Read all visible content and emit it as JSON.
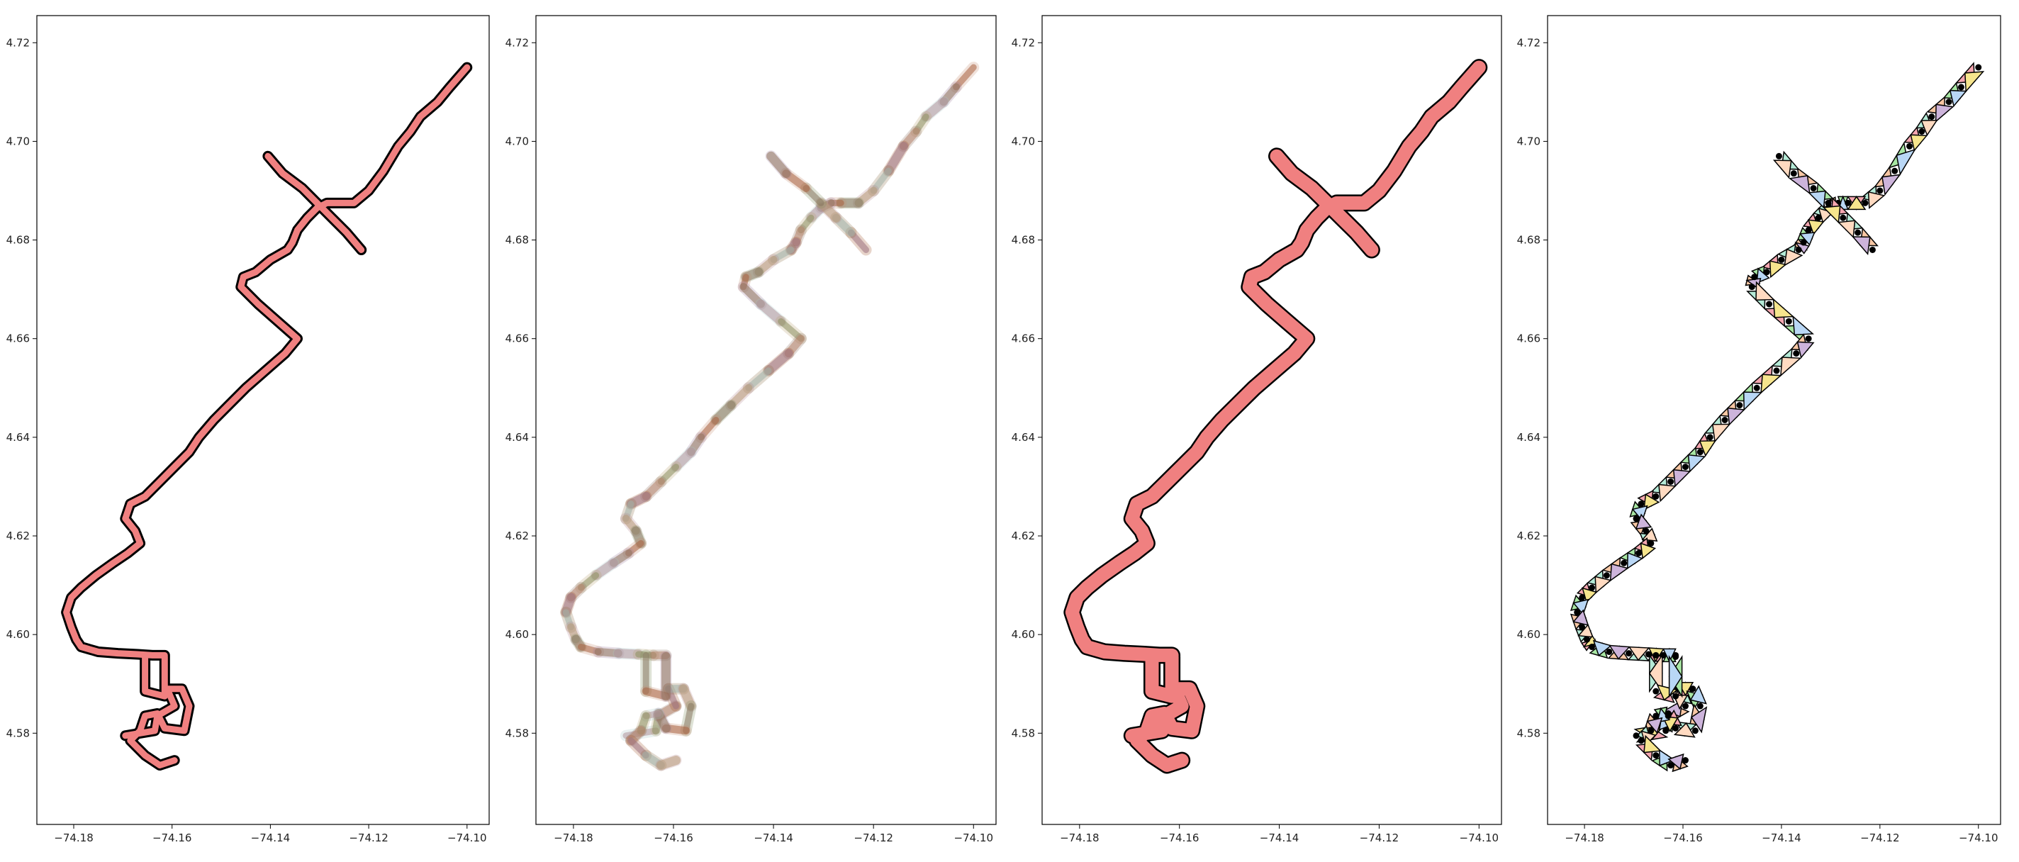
{
  "figure": {
    "layout": "1 row x 4 panels",
    "background": "#ffffff"
  },
  "chart_data": [
    {
      "type": "line",
      "style": "route outline (thick black edge, salmon fill)",
      "x_ticks": [
        "−74.18",
        "−74.16",
        "−74.14",
        "−74.12",
        "−74.10"
      ],
      "y_ticks": [
        "4.58",
        "4.60",
        "4.62",
        "4.64",
        "4.66",
        "4.68",
        "4.70",
        "4.72"
      ],
      "xlim": [
        -74.1875,
        -74.0955
      ],
      "ylim": [
        4.5615,
        4.7255
      ],
      "fill_color": "#f08080",
      "edge_color": "#000000",
      "series": [
        {
          "x": [
            -74.1,
            -74.1035,
            -74.106,
            -74.1095,
            -74.1115,
            -74.114,
            -74.117,
            -74.12,
            -74.123,
            -74.1265,
            -74.1285,
            -74.1305,
            -74.1325,
            -74.1345,
            -74.1355,
            -74.1365,
            -74.14,
            -74.143,
            -74.1455,
            -74.146,
            -74.1425,
            -74.1385,
            -74.1345,
            -74.137,
            -74.141,
            -74.145,
            -74.1485,
            -74.1515,
            -74.1545,
            -74.1565,
            -74.1595,
            -74.1625,
            -74.1655,
            -74.1685,
            -74.1695,
            -74.1675,
            -74.1665,
            -74.169,
            -74.172,
            -74.1755,
            -74.1785,
            -74.1805,
            -74.1815,
            -74.1805,
            -74.1795,
            -74.1785,
            -74.175,
            -74.171,
            -74.167,
            -74.164,
            -74.1615
          ],
          "y": [
            4.715,
            4.711,
            4.708,
            4.705,
            4.702,
            4.699,
            4.694,
            4.69,
            4.6875,
            4.6875,
            4.6875,
            4.6865,
            4.6845,
            4.682,
            4.6795,
            4.678,
            4.676,
            4.6735,
            4.6725,
            4.6705,
            4.667,
            4.6635,
            4.66,
            4.657,
            4.6535,
            4.65,
            4.6465,
            4.6435,
            4.64,
            4.637,
            4.634,
            4.631,
            4.628,
            4.6265,
            4.6235,
            4.621,
            4.6185,
            4.6165,
            4.6145,
            4.612,
            4.6095,
            4.6075,
            4.6045,
            4.6015,
            4.599,
            4.5975,
            4.5965,
            4.5962,
            4.596,
            4.5958,
            4.5958
          ]
        },
        {
          "x": [
            -74.1215,
            -74.1245,
            -74.1275,
            -74.1305,
            -74.1335,
            -74.1375,
            -74.1405
          ],
          "y": [
            4.678,
            4.6815,
            4.6845,
            4.6875,
            4.6905,
            4.6935,
            4.697
          ]
        },
        {
          "x": [
            -74.1695,
            -74.1635,
            -74.163,
            -74.1595,
            -74.161,
            -74.158,
            -74.1565,
            -74.1575,
            -74.1615,
            -74.163,
            -74.1655,
            -74.1665,
            -74.1685,
            -74.1655,
            -74.1625,
            -74.1595
          ],
          "y": [
            4.5795,
            4.5805,
            4.5835,
            4.5855,
            4.589,
            4.589,
            4.5855,
            4.5805,
            4.581,
            4.584,
            4.5835,
            4.5805,
            4.5785,
            4.5755,
            4.5735,
            4.5745
          ]
        },
        {
          "x": [
            -74.1655,
            -74.1655,
            -74.1615,
            -74.1615
          ],
          "y": [
            4.5958,
            4.5885,
            4.5875,
            4.5955
          ]
        }
      ]
    },
    {
      "type": "line",
      "style": "overlapping semi-transparent multicolor segments",
      "x_ticks": [
        "−74.18",
        "−74.16",
        "−74.14",
        "−74.12",
        "−74.10"
      ],
      "y_ticks": [
        "4.58",
        "4.60",
        "4.62",
        "4.64",
        "4.66",
        "4.68",
        "4.70",
        "4.72"
      ],
      "xlim": [
        -74.1875,
        -74.0955
      ],
      "ylim": [
        4.5615,
        4.7255
      ],
      "segment_colors": [
        "#a0522d",
        "#8b6f47",
        "#b5838d",
        "#7d8b5b",
        "#c48b70",
        "#9c7c9c",
        "#a8c8c8",
        "#b8a070",
        "#8a7060"
      ],
      "series": [
        {
          "x": [
            -74.1,
            -74.1035,
            -74.106,
            -74.1095,
            -74.1115,
            -74.114,
            -74.117,
            -74.12,
            -74.123,
            -74.1265,
            -74.1285,
            -74.1305,
            -74.1325,
            -74.1345,
            -74.1355,
            -74.1365,
            -74.14,
            -74.143,
            -74.1455,
            -74.146,
            -74.1425,
            -74.1385,
            -74.1345,
            -74.137,
            -74.141,
            -74.145,
            -74.1485,
            -74.1515,
            -74.1545,
            -74.1565,
            -74.1595,
            -74.1625,
            -74.1655,
            -74.1685,
            -74.1695,
            -74.1675,
            -74.1665,
            -74.169,
            -74.172,
            -74.1755,
            -74.1785,
            -74.1805,
            -74.1815,
            -74.1805,
            -74.1795,
            -74.1785,
            -74.175,
            -74.171,
            -74.167,
            -74.164,
            -74.1615
          ],
          "y": [
            4.715,
            4.711,
            4.708,
            4.705,
            4.702,
            4.699,
            4.694,
            4.69,
            4.6875,
            4.6875,
            4.6875,
            4.6865,
            4.6845,
            4.682,
            4.6795,
            4.678,
            4.676,
            4.6735,
            4.6725,
            4.6705,
            4.667,
            4.6635,
            4.66,
            4.657,
            4.6535,
            4.65,
            4.6465,
            4.6435,
            4.64,
            4.637,
            4.634,
            4.631,
            4.628,
            4.6265,
            4.6235,
            4.621,
            4.6185,
            4.6165,
            4.6145,
            4.612,
            4.6095,
            4.6075,
            4.6045,
            4.6015,
            4.599,
            4.5975,
            4.5965,
            4.5962,
            4.596,
            4.5958,
            4.5958
          ]
        },
        {
          "x": [
            -74.1215,
            -74.1245,
            -74.1275,
            -74.1305,
            -74.1335,
            -74.1375,
            -74.1405
          ],
          "y": [
            4.678,
            4.6815,
            4.6845,
            4.6875,
            4.6905,
            4.6935,
            4.697
          ]
        },
        {
          "x": [
            -74.1695,
            -74.1635,
            -74.163,
            -74.1595,
            -74.161,
            -74.158,
            -74.1565,
            -74.1575,
            -74.1615,
            -74.163,
            -74.1655,
            -74.1665,
            -74.1685,
            -74.1655,
            -74.1625,
            -74.1595
          ],
          "y": [
            4.5795,
            4.5805,
            4.5835,
            4.5855,
            4.589,
            4.589,
            4.5855,
            4.5805,
            4.581,
            4.584,
            4.5835,
            4.5805,
            4.5785,
            4.5755,
            4.5735,
            4.5745
          ]
        },
        {
          "x": [
            -74.1655,
            -74.1655,
            -74.1615,
            -74.1615
          ],
          "y": [
            4.5958,
            4.5885,
            4.5875,
            4.5955
          ]
        }
      ]
    },
    {
      "type": "line",
      "style": "buffered merged route polygon (salmon fill, black edge)",
      "x_ticks": [
        "−74.18",
        "−74.16",
        "−74.14",
        "−74.12",
        "−74.10"
      ],
      "y_ticks": [
        "4.58",
        "4.60",
        "4.62",
        "4.64",
        "4.66",
        "4.68",
        "4.70",
        "4.72"
      ],
      "xlim": [
        -74.1875,
        -74.0955
      ],
      "ylim": [
        4.5615,
        4.7255
      ],
      "fill_color": "#f08080",
      "edge_color": "#000000",
      "series": [
        {
          "x": [
            -74.1,
            -74.1035,
            -74.106,
            -74.1095,
            -74.1115,
            -74.114,
            -74.117,
            -74.12,
            -74.123,
            -74.1265,
            -74.1285,
            -74.1305,
            -74.1325,
            -74.1345,
            -74.1355,
            -74.1365,
            -74.14,
            -74.143,
            -74.1455,
            -74.146,
            -74.1425,
            -74.1385,
            -74.1345,
            -74.137,
            -74.141,
            -74.145,
            -74.1485,
            -74.1515,
            -74.1545,
            -74.1565,
            -74.1595,
            -74.1625,
            -74.1655,
            -74.1685,
            -74.1695,
            -74.1675,
            -74.1665,
            -74.169,
            -74.172,
            -74.1755,
            -74.1785,
            -74.1805,
            -74.1815,
            -74.1805,
            -74.1795,
            -74.1785,
            -74.175,
            -74.171,
            -74.167,
            -74.164,
            -74.1615
          ],
          "y": [
            4.715,
            4.711,
            4.708,
            4.705,
            4.702,
            4.699,
            4.694,
            4.69,
            4.6875,
            4.6875,
            4.6875,
            4.6865,
            4.6845,
            4.682,
            4.6795,
            4.678,
            4.676,
            4.6735,
            4.6725,
            4.6705,
            4.667,
            4.6635,
            4.66,
            4.657,
            4.6535,
            4.65,
            4.6465,
            4.6435,
            4.64,
            4.637,
            4.634,
            4.631,
            4.628,
            4.6265,
            4.6235,
            4.621,
            4.6185,
            4.6165,
            4.6145,
            4.612,
            4.6095,
            4.6075,
            4.6045,
            4.6015,
            4.599,
            4.5975,
            4.5965,
            4.5962,
            4.596,
            4.5958,
            4.5958
          ]
        },
        {
          "x": [
            -74.1215,
            -74.1245,
            -74.1275,
            -74.1305,
            -74.1335,
            -74.1375,
            -74.1405
          ],
          "y": [
            4.678,
            4.6815,
            4.6845,
            4.6875,
            4.6905,
            4.6935,
            4.697
          ]
        },
        {
          "x": [
            -74.1695,
            -74.1635,
            -74.163,
            -74.1595,
            -74.161,
            -74.158,
            -74.1565,
            -74.1575,
            -74.1615,
            -74.163,
            -74.1655,
            -74.1665,
            -74.1685,
            -74.1655,
            -74.1625,
            -74.1595
          ],
          "y": [
            4.5795,
            4.5805,
            4.5835,
            4.5855,
            4.589,
            4.589,
            4.5855,
            4.5805,
            4.581,
            4.584,
            4.5835,
            4.5805,
            4.5785,
            4.5755,
            4.5735,
            4.5745
          ]
        },
        {
          "x": [
            -74.1655,
            -74.1655,
            -74.1615,
            -74.1615
          ],
          "y": [
            4.5958,
            4.5885,
            4.5875,
            4.5955
          ]
        }
      ]
    },
    {
      "type": "line",
      "style": "triangulated mesh along route (black edges, pastel triangle fills)",
      "x_ticks": [
        "−74.18",
        "−74.16",
        "−74.14",
        "−74.12",
        "−74.10"
      ],
      "y_ticks": [
        "4.58",
        "4.60",
        "4.62",
        "4.64",
        "4.66",
        "4.68",
        "4.70",
        "4.72"
      ],
      "xlim": [
        -74.1875,
        -74.0955
      ],
      "ylim": [
        4.5615,
        4.7255
      ],
      "triangle_colors": [
        "#f4a6b0",
        "#f6e58d",
        "#a8e6a3",
        "#b9d7f5",
        "#f7c6a3",
        "#cdb4db",
        "#b5ead7",
        "#ffdac1"
      ],
      "edge_color": "#000000",
      "series": [
        {
          "x": [
            -74.1,
            -74.1035,
            -74.106,
            -74.1095,
            -74.1115,
            -74.114,
            -74.117,
            -74.12,
            -74.123,
            -74.1265,
            -74.1285,
            -74.1305,
            -74.1325,
            -74.1345,
            -74.1355,
            -74.1365,
            -74.14,
            -74.143,
            -74.1455,
            -74.146,
            -74.1425,
            -74.1385,
            -74.1345,
            -74.137,
            -74.141,
            -74.145,
            -74.1485,
            -74.1515,
            -74.1545,
            -74.1565,
            -74.1595,
            -74.1625,
            -74.1655,
            -74.1685,
            -74.1695,
            -74.1675,
            -74.1665,
            -74.169,
            -74.172,
            -74.1755,
            -74.1785,
            -74.1805,
            -74.1815,
            -74.1805,
            -74.1795,
            -74.1785,
            -74.175,
            -74.171,
            -74.167,
            -74.164,
            -74.1615
          ],
          "y": [
            4.715,
            4.711,
            4.708,
            4.705,
            4.702,
            4.699,
            4.694,
            4.69,
            4.6875,
            4.6875,
            4.6875,
            4.6865,
            4.6845,
            4.682,
            4.6795,
            4.678,
            4.676,
            4.6735,
            4.6725,
            4.6705,
            4.667,
            4.6635,
            4.66,
            4.657,
            4.6535,
            4.65,
            4.6465,
            4.6435,
            4.64,
            4.637,
            4.634,
            4.631,
            4.628,
            4.6265,
            4.6235,
            4.621,
            4.6185,
            4.6165,
            4.6145,
            4.612,
            4.6095,
            4.6075,
            4.6045,
            4.6015,
            4.599,
            4.5975,
            4.5965,
            4.5962,
            4.596,
            4.5958,
            4.5958
          ]
        },
        {
          "x": [
            -74.1215,
            -74.1245,
            -74.1275,
            -74.1305,
            -74.1335,
            -74.1375,
            -74.1405
          ],
          "y": [
            4.678,
            4.6815,
            4.6845,
            4.6875,
            4.6905,
            4.6935,
            4.697
          ]
        },
        {
          "x": [
            -74.1695,
            -74.1635,
            -74.163,
            -74.1595,
            -74.161,
            -74.158,
            -74.1565,
            -74.1575,
            -74.1615,
            -74.163,
            -74.1655,
            -74.1665,
            -74.1685,
            -74.1655,
            -74.1625,
            -74.1595
          ],
          "y": [
            4.5795,
            4.5805,
            4.5835,
            4.5855,
            4.589,
            4.589,
            4.5855,
            4.5805,
            4.581,
            4.584,
            4.5835,
            4.5805,
            4.5785,
            4.5755,
            4.5735,
            4.5745
          ]
        },
        {
          "x": [
            -74.1655,
            -74.1655,
            -74.1615,
            -74.1615
          ],
          "y": [
            4.5958,
            4.5885,
            4.5875,
            4.5955
          ]
        }
      ]
    }
  ]
}
